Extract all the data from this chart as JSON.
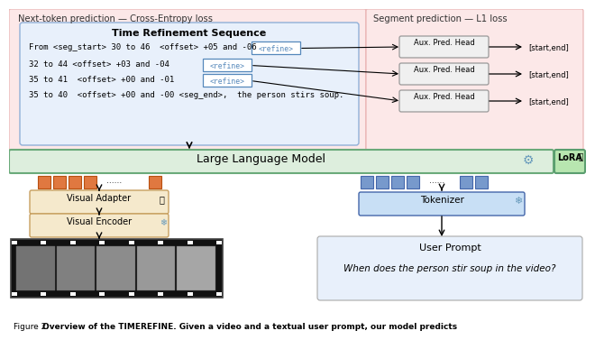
{
  "fig_width": 6.4,
  "fig_height": 3.53,
  "bg_color": "#ffffff",
  "left_panel_bg": "#fce8e8",
  "right_panel_bg": "#fce8e8",
  "llm_box_bg": "#ddeedd",
  "llm_box_border": "#6aaa7a",
  "time_ref_box_bg": "#e8f0fb",
  "time_ref_box_border": "#90b0d8",
  "visual_adapter_bg": "#f5e9cc",
  "visual_encoder_bg": "#f5e9cc",
  "tokenizer_bg": "#c8dff5",
  "aux_head_bg": "#f0f0f0",
  "aux_head_border": "#999999",
  "refine_token_bg": "#ffffff",
  "refine_token_border": "#5588bb",
  "lora_bg": "#b8e6b0",
  "lora_border": "#5a9e6f",
  "orange_token": "#e07840",
  "orange_token_border": "#b85010",
  "blue_token": "#7799cc",
  "blue_token_border": "#4466aa",
  "user_prompt_bg": "#e8f0fb",
  "user_prompt_border": "#aaaaaa",
  "label_next_token": "Next-token prediction — Cross-Entropy loss",
  "label_segment_pred": "Segment prediction — L1 loss",
  "label_time_ref": "Time Refinement Sequence",
  "label_llm": "Large Language Model",
  "label_lora": "LoRA",
  "label_visual_adapter": "Visual Adapter",
  "label_visual_encoder": "Visual Encoder",
  "label_tokenizer": "Tokenizer",
  "label_user_prompt_title": "User Prompt",
  "label_user_prompt": "When does the person stir soup in the video?",
  "label_aux_head": "Aux. Pred. Head",
  "label_start_end": "[start,end]",
  "caption_start": "Figure 2: ",
  "caption_bold": "Overview of the T",
  "caption_sc": "IME",
  "caption_bold2": "R",
  "caption_sc2": "EFINE",
  "caption_rest": ". Given a video and a textual user prompt, our model predicts",
  "seq_line1_pre": "From <seg_start> 30 to 46  <offset> +05 and -06  ",
  "seq_line2_pre": "32 to 44 <offset> +03 and -04  ",
  "seq_line3_pre": "35 to 41  <offset> +00 and -01  ",
  "seq_line4": "35 to 40  <offset> +00 and -00 <seg_end>,  the person stirs soup.",
  "refine_label": "<refine>"
}
